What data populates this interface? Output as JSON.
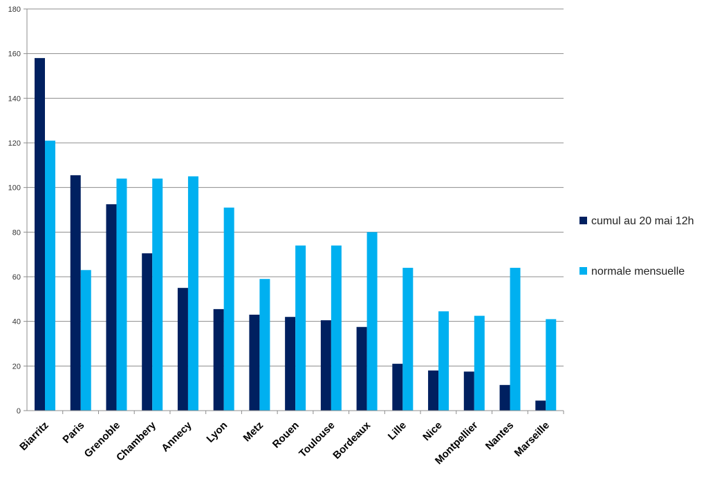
{
  "chart_data": {
    "type": "bar",
    "categories": [
      "Biarritz",
      "Paris",
      "Grenoble",
      "Chambery",
      "Annecy",
      "Lyon",
      "Metz",
      "Rouen",
      "Toulouse",
      "Bordeaux",
      "Lille",
      "Nice",
      "Montpellier",
      "Nantes",
      "Marseille"
    ],
    "series": [
      {
        "name": "cumul au 20 mai 12h",
        "color": "#002060",
        "values": [
          158,
          105.5,
          92.5,
          70.5,
          55,
          45.5,
          43,
          42,
          40.5,
          37.5,
          21,
          18,
          17.5,
          11.5,
          4.5
        ]
      },
      {
        "name": "normale mensuelle",
        "color": "#00B0F0",
        "values": [
          121,
          63,
          104,
          104,
          105,
          91,
          59,
          74,
          74,
          80,
          64,
          44.5,
          42.5,
          64,
          41
        ]
      }
    ],
    "ylim": [
      0,
      180
    ],
    "yticks": [
      "0",
      "20",
      "40",
      "60",
      "80",
      "100",
      "120",
      "140",
      "160",
      "180"
    ],
    "grid": true,
    "legend_position": "right"
  }
}
